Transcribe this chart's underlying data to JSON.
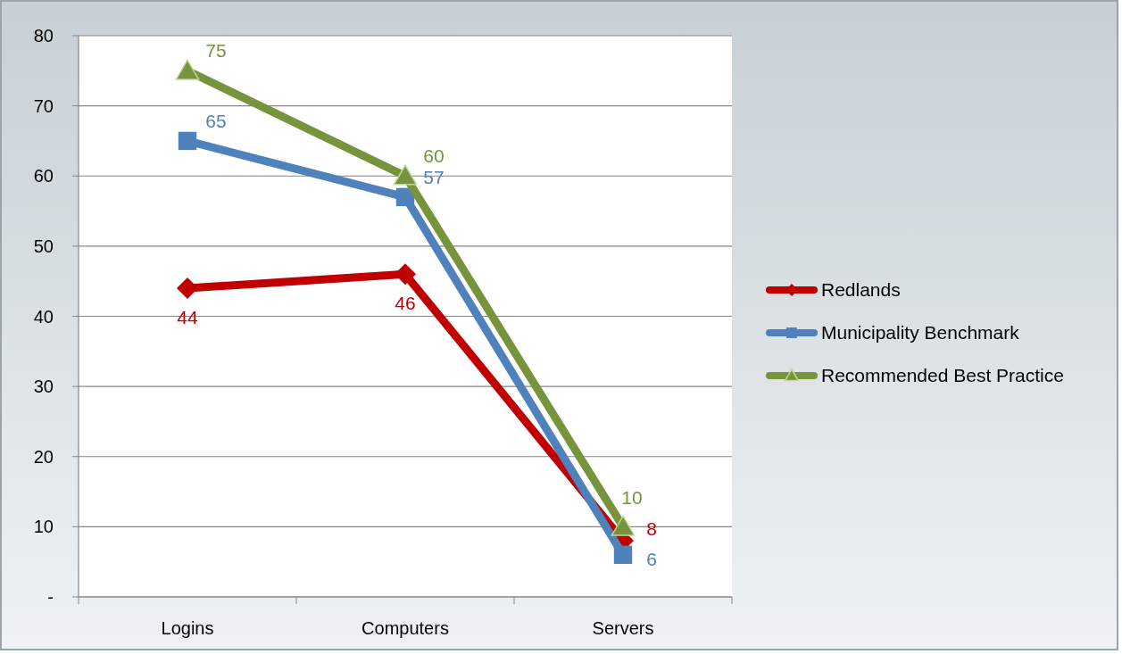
{
  "chart_data": {
    "type": "line",
    "categories": [
      "Logins",
      "Computers",
      "Servers"
    ],
    "series": [
      {
        "name": "Redlands",
        "color": "#c00000",
        "marker": "diamond",
        "values": [
          44,
          46,
          8
        ]
      },
      {
        "name": "Municipality Benchmark",
        "color": "#4f81bd",
        "marker": "square",
        "values": [
          65,
          57,
          6
        ]
      },
      {
        "name": "Recommended Best Practice",
        "color": "#77933c",
        "marker": "triangle",
        "values": [
          75,
          60,
          10
        ]
      }
    ],
    "ylim": [
      0,
      80
    ],
    "yticks": [
      {
        "value": 0,
        "label": "-"
      },
      10,
      20,
      30,
      40,
      50,
      60,
      70,
      80
    ],
    "grid": "y",
    "legend": "right",
    "data_labels": true
  }
}
